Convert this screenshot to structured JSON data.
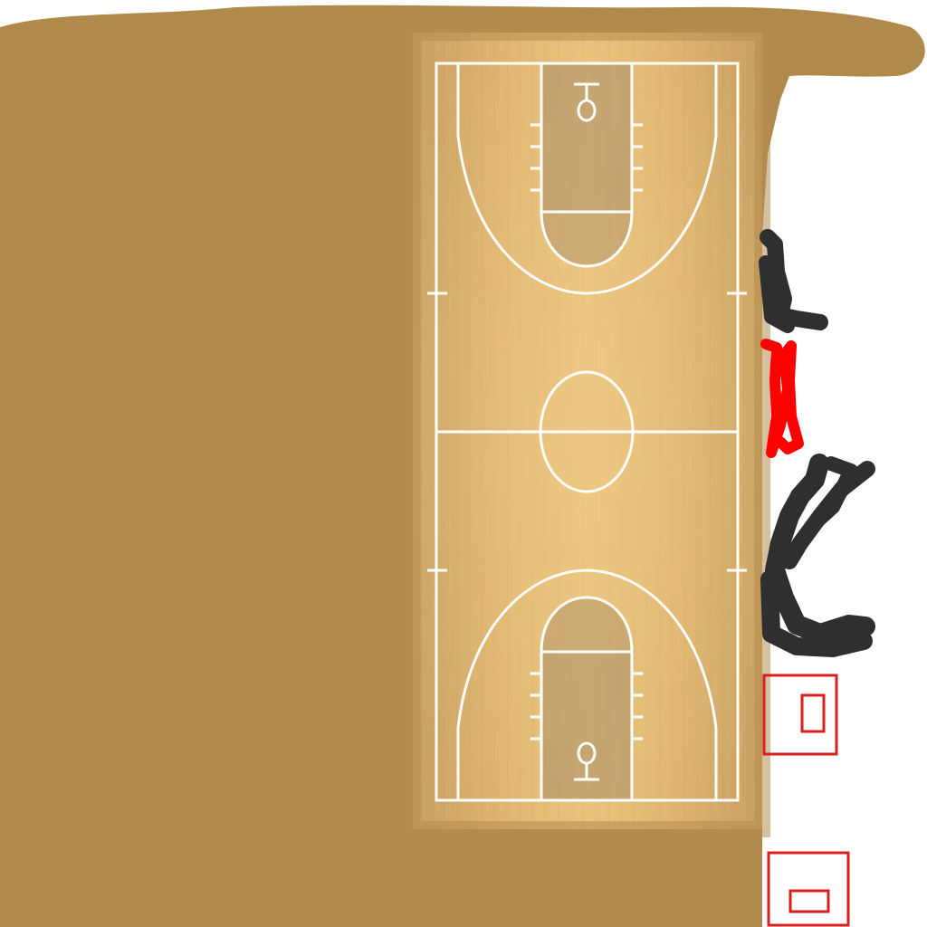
{
  "scene": {
    "description_free": true,
    "colors": {
      "background": "#ffffff",
      "paint_fill": "#af8a4a",
      "court_wood_light": "#e8c07a",
      "court_wood_dark": "#c9a062",
      "court_lines": "#ffffff",
      "key_shade": "#b79a6e",
      "scribble_dark": "#2f2f2f",
      "scribble_red": "#ff0000",
      "box_outline": "#d81e1e"
    },
    "icons": [
      "basketball-court",
      "dark-scribble",
      "red-scribble",
      "red-outline-box",
      "red-outline-box"
    ]
  }
}
